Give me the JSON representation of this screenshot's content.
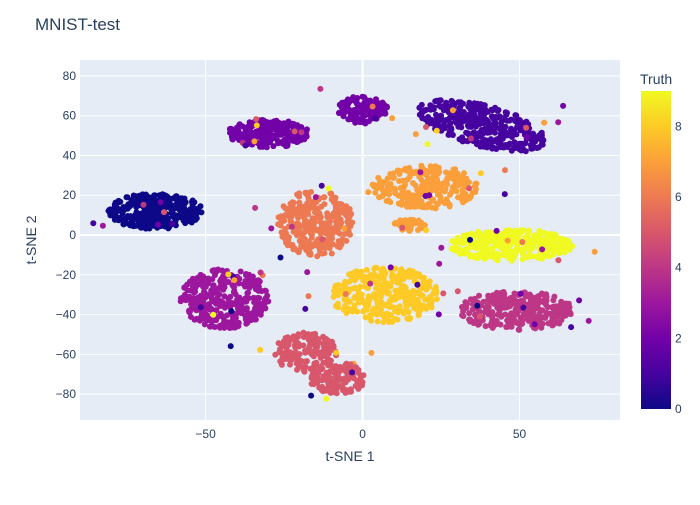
{
  "chart_data": {
    "type": "scatter",
    "title": "MNIST-test",
    "xlabel": "t-SNE 1",
    "ylabel": "t-SNE 2",
    "xlim": [
      -90,
      82
    ],
    "ylim": [
      -93,
      88
    ],
    "x_ticks": [
      -50,
      0,
      50
    ],
    "x_tick_labels": [
      "−50",
      "0",
      "50"
    ],
    "y_ticks": [
      -80,
      -60,
      -40,
      -20,
      0,
      20,
      40,
      60,
      80
    ],
    "y_tick_labels": [
      "−80",
      "−60",
      "−40",
      "−20",
      "0",
      "20",
      "40",
      "60",
      "80"
    ],
    "grid": true,
    "legend_placement": "right colorbar",
    "colorbar": {
      "title": "Truth",
      "colorscale": "plasma",
      "range": [
        0,
        9
      ],
      "ticks": [
        0,
        2,
        4,
        6,
        8
      ],
      "tick_labels": [
        "0",
        "2",
        "4",
        "6",
        "8"
      ]
    },
    "clusters": [
      {
        "truth": 0,
        "cx": -66,
        "cy": 12,
        "rx": 15,
        "ry": 9,
        "n": 340
      },
      {
        "truth": 1,
        "cx": 38,
        "cy": 55,
        "rx": 22,
        "ry": 10,
        "tilt": -0.45,
        "n": 360
      },
      {
        "truth": 2,
        "cx": -30,
        "cy": 51,
        "rx": 13,
        "ry": 7,
        "n": 230
      },
      {
        "truth": 2,
        "cx": 0,
        "cy": 63,
        "rx": 8,
        "ry": 7,
        "n": 130
      },
      {
        "truth": 3,
        "cx": -44,
        "cy": -32,
        "rx": 14,
        "ry": 15,
        "n": 320
      },
      {
        "truth": 4,
        "cx": 49,
        "cy": -38,
        "rx": 18,
        "ry": 10,
        "n": 300
      },
      {
        "truth": 5,
        "cx": -18,
        "cy": -59,
        "rx": 10,
        "ry": 10,
        "n": 150
      },
      {
        "truth": 5,
        "cx": -8,
        "cy": -72,
        "rx": 9,
        "ry": 8,
        "n": 130
      },
      {
        "truth": 6,
        "cx": -15,
        "cy": 6,
        "rx": 12,
        "ry": 17,
        "n": 280
      },
      {
        "truth": 7,
        "cx": 20,
        "cy": 24,
        "rx": 17,
        "ry": 11,
        "n": 260
      },
      {
        "truth": 7,
        "cx": 15,
        "cy": 5,
        "rx": 5,
        "ry": 3,
        "n": 40
      },
      {
        "truth": 8,
        "cx": 7,
        "cy": -30,
        "rx": 17,
        "ry": 14,
        "n": 310
      },
      {
        "truth": 9,
        "cx": 47,
        "cy": -5,
        "rx": 20,
        "ry": 8,
        "n": 300
      }
    ]
  }
}
